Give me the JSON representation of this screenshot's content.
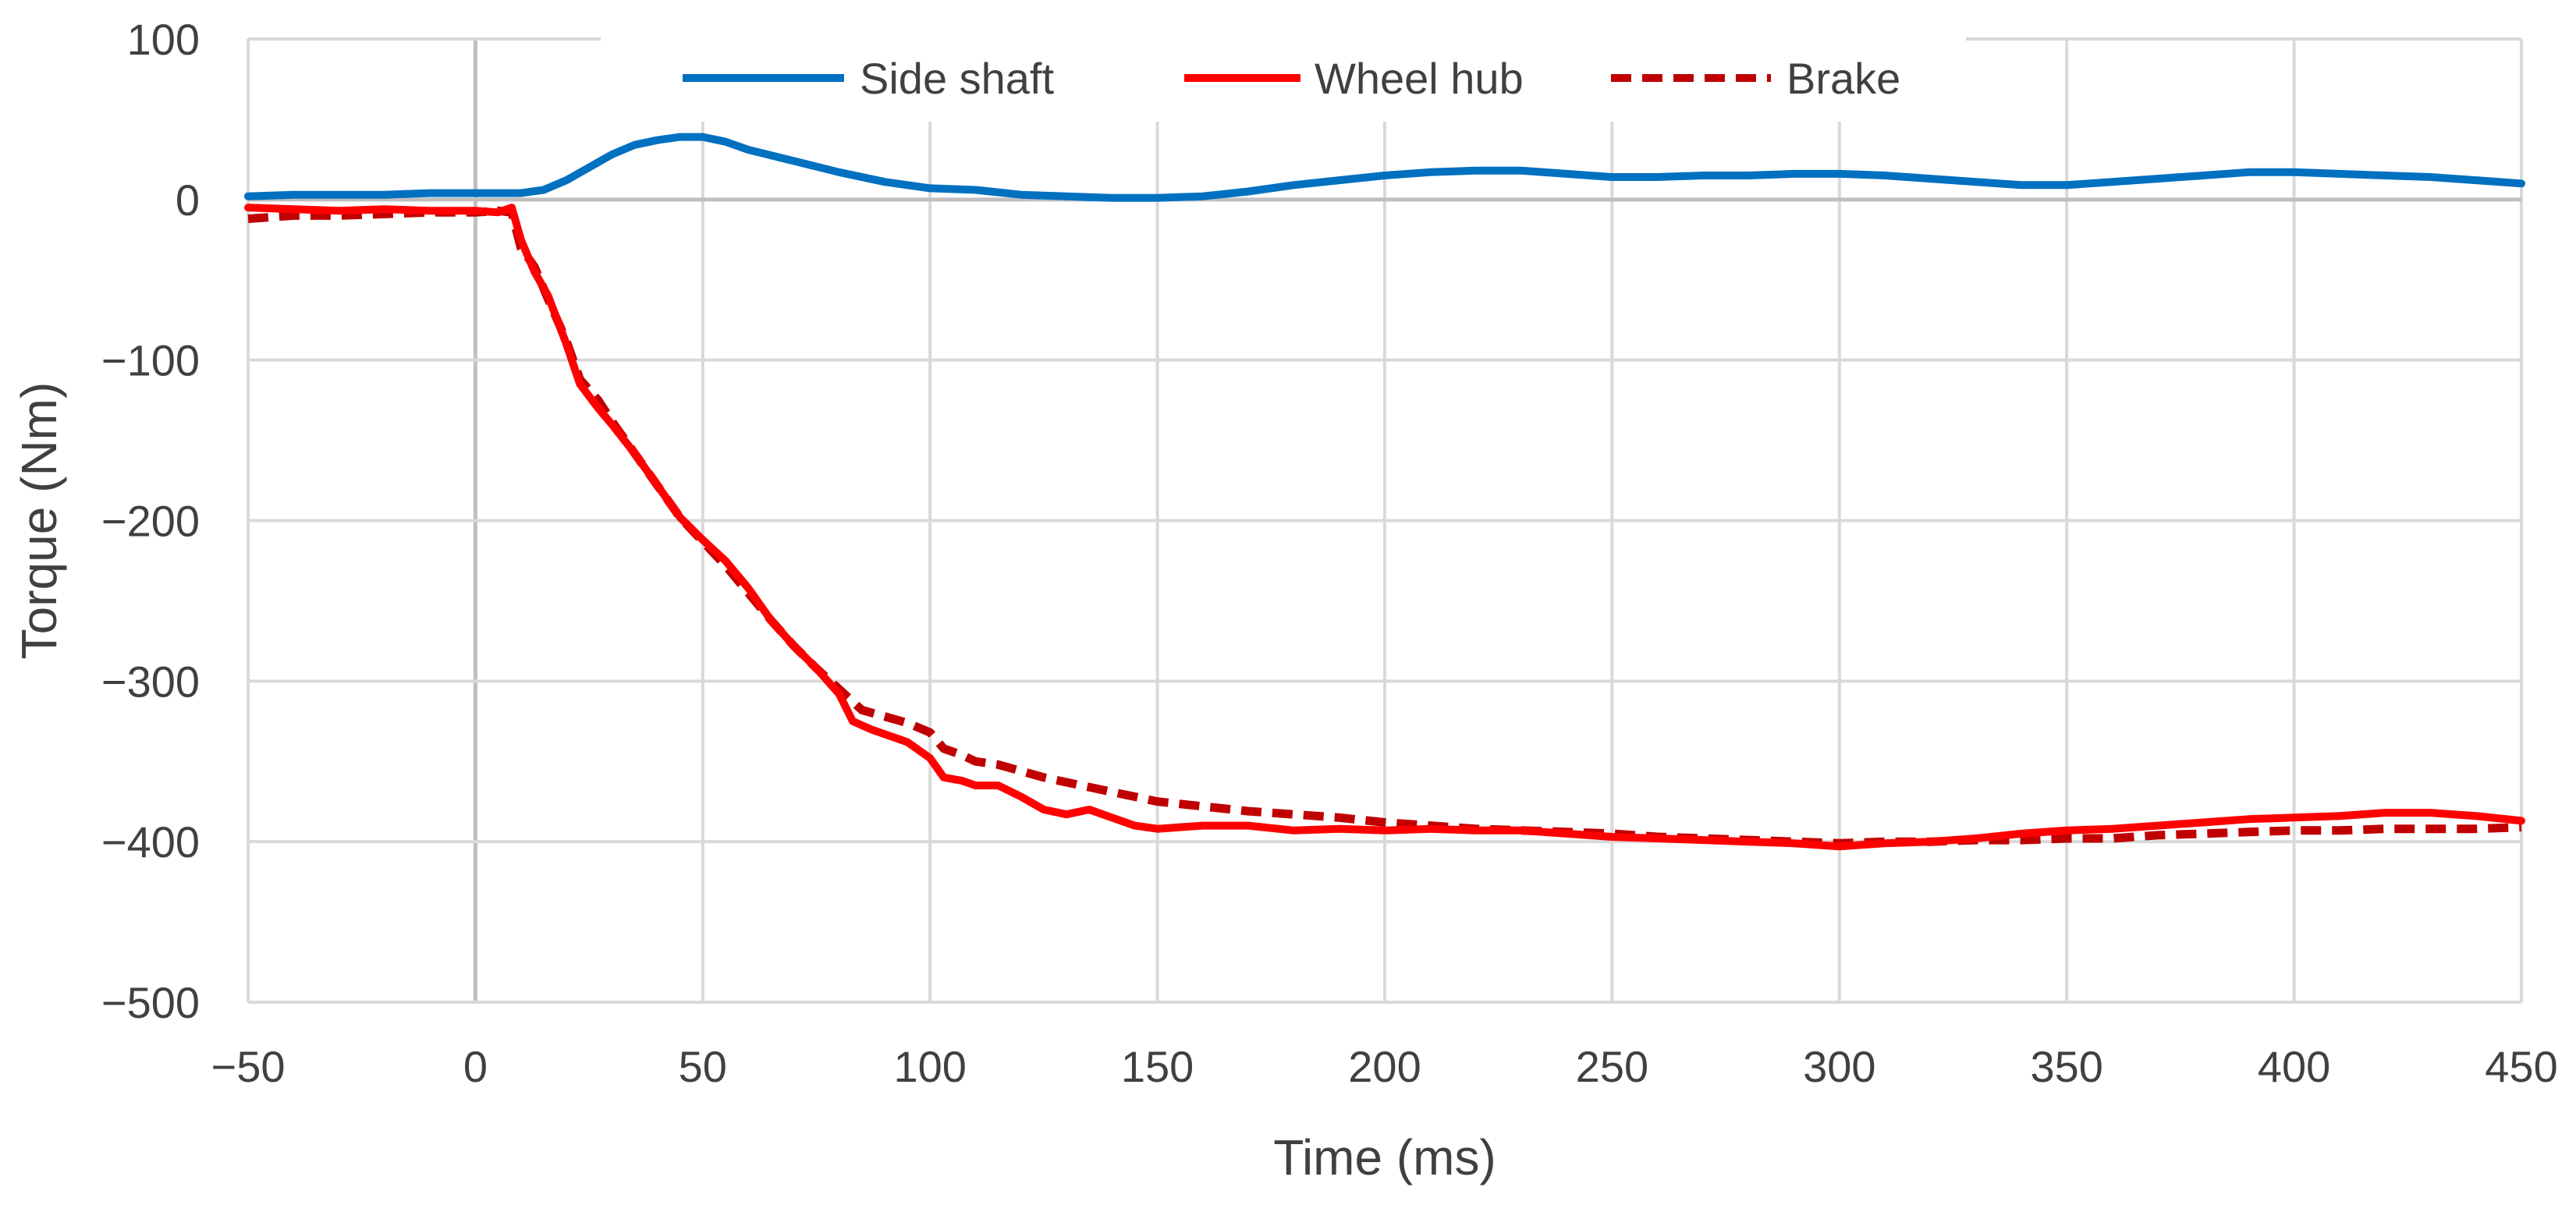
{
  "chart_data": {
    "type": "line",
    "title": "",
    "xlabel": "Time (ms)",
    "ylabel": "Torque (Nm)",
    "xlim": [
      -50,
      450
    ],
    "ylim": [
      -500,
      100
    ],
    "grid": true,
    "legend_position": "top-center",
    "x_ticks": [
      -50,
      0,
      50,
      100,
      150,
      200,
      250,
      300,
      350,
      400,
      450
    ],
    "x_tick_labels": [
      "−50",
      "0",
      "50",
      "100",
      "150",
      "200",
      "250",
      "300",
      "350",
      "400",
      "450"
    ],
    "y_ticks": [
      100,
      0,
      -100,
      -200,
      -300,
      -400,
      -500
    ],
    "y_tick_labels": [
      "100",
      "0",
      "−100",
      "−200",
      "−300",
      "−400",
      "−500"
    ],
    "colors": {
      "side_shaft": "#0070C0",
      "wheel_hub": "#FF0000",
      "brake": "#C00000",
      "grid": "#D9D9D9",
      "zero_line": "#BFBFBF",
      "text": "#404040"
    },
    "series": [
      {
        "name": "Side shaft",
        "style": "solid",
        "points": [
          [
            -50,
            2
          ],
          [
            -40,
            3
          ],
          [
            -30,
            3
          ],
          [
            -20,
            3
          ],
          [
            -10,
            4
          ],
          [
            0,
            4
          ],
          [
            10,
            4
          ],
          [
            15,
            6
          ],
          [
            20,
            12
          ],
          [
            25,
            20
          ],
          [
            30,
            28
          ],
          [
            35,
            34
          ],
          [
            40,
            37
          ],
          [
            45,
            39
          ],
          [
            50,
            39
          ],
          [
            55,
            36
          ],
          [
            60,
            31
          ],
          [
            70,
            24
          ],
          [
            80,
            17
          ],
          [
            90,
            11
          ],
          [
            100,
            7
          ],
          [
            110,
            6
          ],
          [
            120,
            3
          ],
          [
            130,
            2
          ],
          [
            140,
            1
          ],
          [
            150,
            1
          ],
          [
            160,
            2
          ],
          [
            170,
            5
          ],
          [
            180,
            9
          ],
          [
            190,
            12
          ],
          [
            200,
            15
          ],
          [
            210,
            17
          ],
          [
            220,
            18
          ],
          [
            230,
            18
          ],
          [
            240,
            16
          ],
          [
            250,
            14
          ],
          [
            260,
            14
          ],
          [
            270,
            15
          ],
          [
            280,
            15
          ],
          [
            290,
            16
          ],
          [
            300,
            16
          ],
          [
            310,
            15
          ],
          [
            320,
            13
          ],
          [
            330,
            11
          ],
          [
            340,
            9
          ],
          [
            350,
            9
          ],
          [
            360,
            11
          ],
          [
            370,
            13
          ],
          [
            380,
            15
          ],
          [
            390,
            17
          ],
          [
            400,
            17
          ],
          [
            410,
            16
          ],
          [
            420,
            15
          ],
          [
            430,
            14
          ],
          [
            440,
            12
          ],
          [
            450,
            10
          ]
        ]
      },
      {
        "name": "Wheel hub",
        "style": "solid",
        "points": [
          [
            -50,
            -5
          ],
          [
            -40,
            -6
          ],
          [
            -30,
            -7
          ],
          [
            -20,
            -6
          ],
          [
            -10,
            -7
          ],
          [
            0,
            -7
          ],
          [
            5,
            -8
          ],
          [
            8,
            -5
          ],
          [
            10,
            -25
          ],
          [
            13,
            -45
          ],
          [
            16,
            -60
          ],
          [
            20,
            -90
          ],
          [
            23,
            -115
          ],
          [
            27,
            -130
          ],
          [
            30,
            -140
          ],
          [
            35,
            -158
          ],
          [
            40,
            -178
          ],
          [
            45,
            -198
          ],
          [
            50,
            -212
          ],
          [
            55,
            -225
          ],
          [
            60,
            -242
          ],
          [
            65,
            -262
          ],
          [
            70,
            -278
          ],
          [
            75,
            -292
          ],
          [
            80,
            -308
          ],
          [
            83,
            -325
          ],
          [
            87,
            -330
          ],
          [
            90,
            -333
          ],
          [
            95,
            -338
          ],
          [
            100,
            -348
          ],
          [
            103,
            -360
          ],
          [
            107,
            -362
          ],
          [
            110,
            -365
          ],
          [
            115,
            -365
          ],
          [
            120,
            -372
          ],
          [
            125,
            -380
          ],
          [
            130,
            -383
          ],
          [
            135,
            -380
          ],
          [
            140,
            -385
          ],
          [
            145,
            -390
          ],
          [
            150,
            -392
          ],
          [
            160,
            -390
          ],
          [
            170,
            -390
          ],
          [
            180,
            -393
          ],
          [
            190,
            -392
          ],
          [
            200,
            -393
          ],
          [
            210,
            -392
          ],
          [
            220,
            -393
          ],
          [
            230,
            -393
          ],
          [
            240,
            -395
          ],
          [
            250,
            -397
          ],
          [
            260,
            -398
          ],
          [
            270,
            -399
          ],
          [
            280,
            -400
          ],
          [
            290,
            -401
          ],
          [
            300,
            -403
          ],
          [
            310,
            -401
          ],
          [
            320,
            -400
          ],
          [
            330,
            -398
          ],
          [
            340,
            -395
          ],
          [
            350,
            -393
          ],
          [
            360,
            -392
          ],
          [
            370,
            -390
          ],
          [
            380,
            -388
          ],
          [
            390,
            -386
          ],
          [
            400,
            -385
          ],
          [
            410,
            -384
          ],
          [
            420,
            -382
          ],
          [
            430,
            -382
          ],
          [
            440,
            -384
          ],
          [
            450,
            -387
          ]
        ]
      },
      {
        "name": "Brake",
        "style": "dashed",
        "points": [
          [
            -50,
            -12
          ],
          [
            -40,
            -10
          ],
          [
            -30,
            -10
          ],
          [
            -20,
            -9
          ],
          [
            -10,
            -8
          ],
          [
            0,
            -8
          ],
          [
            5,
            -7
          ],
          [
            8,
            -8
          ],
          [
            10,
            -30
          ],
          [
            13,
            -42
          ],
          [
            16,
            -62
          ],
          [
            20,
            -88
          ],
          [
            23,
            -112
          ],
          [
            27,
            -125
          ],
          [
            30,
            -138
          ],
          [
            35,
            -158
          ],
          [
            40,
            -178
          ],
          [
            45,
            -198
          ],
          [
            50,
            -213
          ],
          [
            55,
            -228
          ],
          [
            60,
            -245
          ],
          [
            65,
            -262
          ],
          [
            70,
            -278
          ],
          [
            75,
            -292
          ],
          [
            80,
            -305
          ],
          [
            85,
            -318
          ],
          [
            90,
            -322
          ],
          [
            95,
            -326
          ],
          [
            100,
            -332
          ],
          [
            103,
            -342
          ],
          [
            107,
            -346
          ],
          [
            110,
            -350
          ],
          [
            115,
            -352
          ],
          [
            120,
            -356
          ],
          [
            125,
            -360
          ],
          [
            130,
            -363
          ],
          [
            135,
            -366
          ],
          [
            140,
            -369
          ],
          [
            145,
            -372
          ],
          [
            150,
            -375
          ],
          [
            160,
            -378
          ],
          [
            170,
            -381
          ],
          [
            180,
            -383
          ],
          [
            190,
            -385
          ],
          [
            200,
            -388
          ],
          [
            210,
            -390
          ],
          [
            220,
            -392
          ],
          [
            230,
            -393
          ],
          [
            240,
            -394
          ],
          [
            250,
            -395
          ],
          [
            260,
            -397
          ],
          [
            270,
            -398
          ],
          [
            280,
            -399
          ],
          [
            290,
            -400
          ],
          [
            300,
            -401
          ],
          [
            310,
            -400
          ],
          [
            320,
            -400
          ],
          [
            330,
            -399
          ],
          [
            340,
            -399
          ],
          [
            350,
            -398
          ],
          [
            360,
            -398
          ],
          [
            370,
            -396
          ],
          [
            380,
            -395
          ],
          [
            390,
            -394
          ],
          [
            400,
            -393
          ],
          [
            410,
            -393
          ],
          [
            420,
            -392
          ],
          [
            430,
            -392
          ],
          [
            440,
            -392
          ],
          [
            450,
            -391
          ]
        ]
      }
    ]
  }
}
